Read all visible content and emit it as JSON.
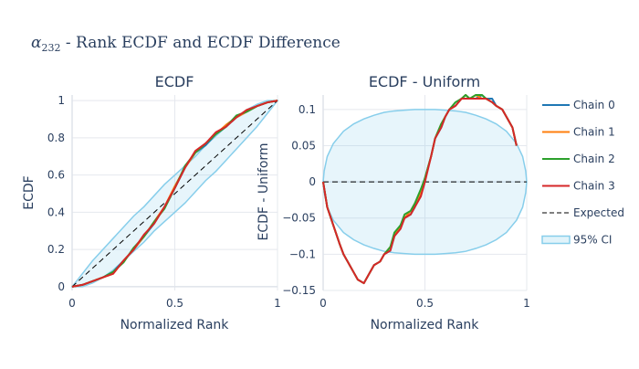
{
  "title_symbol": "α",
  "title_subscript": "232",
  "title_rest": " - Rank ECDF and ECDF Difference",
  "colors": {
    "Chain 0": "#1f77b4",
    "Chain 1": "#ff7f0e",
    "Chain 2": "#2ca02c",
    "Chain 3": "#d62728",
    "Expected": "#000000",
    "95% CI": "#87ceeb"
  },
  "legend": [
    "Chain 0",
    "Chain 1",
    "Chain 2",
    "Chain 3",
    "Expected",
    "95% CI"
  ],
  "chart_data": [
    {
      "type": "line",
      "title": "ECDF",
      "xlabel": "Normalized Rank",
      "ylabel": "ECDF",
      "xlim": [
        0,
        1
      ],
      "ylim": [
        -0.02,
        1.03
      ],
      "xticks": [
        0,
        0.5,
        1
      ],
      "xtick_labels": [
        "0",
        "0.5",
        "1"
      ],
      "yticks": [
        0,
        0.2,
        0.4,
        0.6,
        0.8,
        1
      ],
      "ytick_labels": [
        "0",
        "0.2",
        "0.4",
        "0.6",
        "0.8",
        "1"
      ],
      "grid": true,
      "x": [
        0,
        0.05,
        0.1,
        0.15,
        0.2,
        0.25,
        0.3,
        0.35,
        0.4,
        0.45,
        0.5,
        0.55,
        0.6,
        0.65,
        0.7,
        0.75,
        0.8,
        0.85,
        0.9,
        0.95,
        1
      ],
      "series": [
        {
          "name": "Chain 0",
          "values": [
            0,
            0.01,
            0.03,
            0.05,
            0.08,
            0.14,
            0.2,
            0.27,
            0.34,
            0.43,
            0.53,
            0.64,
            0.72,
            0.76,
            0.82,
            0.86,
            0.91,
            0.94,
            0.97,
            0.99,
            1
          ]
        },
        {
          "name": "Chain 1",
          "values": [
            0,
            0.01,
            0.03,
            0.05,
            0.07,
            0.14,
            0.2,
            0.27,
            0.35,
            0.43,
            0.54,
            0.64,
            0.72,
            0.77,
            0.82,
            0.87,
            0.91,
            0.94,
            0.97,
            0.99,
            1
          ]
        },
        {
          "name": "Chain 2",
          "values": [
            0,
            0.01,
            0.03,
            0.05,
            0.08,
            0.13,
            0.21,
            0.27,
            0.35,
            0.42,
            0.53,
            0.65,
            0.72,
            0.77,
            0.82,
            0.86,
            0.92,
            0.94,
            0.97,
            0.99,
            1
          ]
        },
        {
          "name": "Chain 3",
          "values": [
            0,
            0.01,
            0.03,
            0.05,
            0.07,
            0.14,
            0.2,
            0.28,
            0.34,
            0.43,
            0.53,
            0.64,
            0.73,
            0.77,
            0.83,
            0.86,
            0.91,
            0.95,
            0.97,
            0.99,
            1
          ]
        }
      ],
      "expected": {
        "x": [
          0,
          1
        ],
        "y": [
          0,
          1
        ]
      },
      "ci": {
        "x": [
          0,
          0.05,
          0.1,
          0.15,
          0.2,
          0.25,
          0.3,
          0.35,
          0.4,
          0.45,
          0.5,
          0.55,
          0.6,
          0.65,
          0.7,
          0.75,
          0.8,
          0.85,
          0.9,
          0.95,
          1
        ],
        "lower": [
          0,
          0.0,
          0.02,
          0.05,
          0.09,
          0.14,
          0.19,
          0.24,
          0.3,
          0.35,
          0.4,
          0.45,
          0.51,
          0.57,
          0.62,
          0.68,
          0.74,
          0.8,
          0.86,
          0.93,
          1
        ],
        "upper": [
          0,
          0.07,
          0.14,
          0.2,
          0.26,
          0.32,
          0.38,
          0.43,
          0.49,
          0.55,
          0.6,
          0.65,
          0.7,
          0.76,
          0.81,
          0.86,
          0.91,
          0.95,
          0.98,
          1.0,
          1
        ]
      }
    },
    {
      "type": "line",
      "title": "ECDF - Uniform",
      "xlabel": "Normalized Rank",
      "ylabel": "ECDF - Uniform",
      "xlim": [
        0,
        1
      ],
      "ylim": [
        -0.15,
        0.12
      ],
      "xticks": [
        0,
        0.5,
        1
      ],
      "xtick_labels": [
        "0",
        "0.5",
        "1"
      ],
      "yticks": [
        -0.15,
        -0.1,
        -0.05,
        0,
        0.05,
        0.1
      ],
      "ytick_labels": [
        "−0.15",
        "−0.1",
        "−0.05",
        "0",
        "0.05",
        "0.1"
      ],
      "grid": true,
      "x": [
        0,
        0.02,
        0.05,
        0.08,
        0.1,
        0.13,
        0.15,
        0.17,
        0.2,
        0.22,
        0.25,
        0.28,
        0.3,
        0.33,
        0.35,
        0.38,
        0.4,
        0.43,
        0.45,
        0.48,
        0.5,
        0.53,
        0.55,
        0.58,
        0.6,
        0.62,
        0.65,
        0.68,
        0.7,
        0.72,
        0.75,
        0.78,
        0.8,
        0.83,
        0.85,
        0.88,
        0.9,
        0.93,
        0.95
      ],
      "series": [
        {
          "name": "Chain 0",
          "values": [
            0,
            -0.035,
            -0.06,
            -0.085,
            -0.1,
            -0.115,
            -0.125,
            -0.135,
            -0.14,
            -0.13,
            -0.115,
            -0.11,
            -0.1,
            -0.095,
            -0.075,
            -0.06,
            -0.05,
            -0.045,
            -0.035,
            -0.015,
            0.005,
            0.035,
            0.06,
            0.075,
            0.09,
            0.1,
            0.105,
            0.115,
            0.12,
            0.115,
            0.115,
            0.12,
            0.115,
            0.115,
            0.105,
            0.1,
            0.09,
            0.075,
            0.05
          ]
        },
        {
          "name": "Chain 1",
          "values": [
            0,
            -0.035,
            -0.06,
            -0.085,
            -0.1,
            -0.115,
            -0.125,
            -0.135,
            -0.14,
            -0.13,
            -0.115,
            -0.11,
            -0.1,
            -0.09,
            -0.075,
            -0.06,
            -0.05,
            -0.04,
            -0.03,
            -0.015,
            0.005,
            0.035,
            0.06,
            0.08,
            0.09,
            0.1,
            0.105,
            0.115,
            0.12,
            0.115,
            0.12,
            0.115,
            0.115,
            0.11,
            0.105,
            0.1,
            0.09,
            0.075,
            0.05
          ]
        },
        {
          "name": "Chain 2",
          "values": [
            0,
            -0.035,
            -0.06,
            -0.085,
            -0.1,
            -0.115,
            -0.125,
            -0.135,
            -0.14,
            -0.13,
            -0.115,
            -0.11,
            -0.1,
            -0.09,
            -0.07,
            -0.06,
            -0.045,
            -0.04,
            -0.03,
            -0.01,
            0.005,
            0.035,
            0.06,
            0.08,
            0.09,
            0.1,
            0.11,
            0.115,
            0.12,
            0.115,
            0.12,
            0.12,
            0.115,
            0.11,
            0.105,
            0.1,
            0.09,
            0.075,
            0.05
          ]
        },
        {
          "name": "Chain 3",
          "values": [
            0,
            -0.035,
            -0.06,
            -0.085,
            -0.1,
            -0.115,
            -0.125,
            -0.135,
            -0.14,
            -0.13,
            -0.115,
            -0.11,
            -0.1,
            -0.095,
            -0.075,
            -0.065,
            -0.05,
            -0.045,
            -0.035,
            -0.02,
            0.0,
            0.035,
            0.06,
            0.075,
            0.09,
            0.1,
            0.105,
            0.115,
            0.115,
            0.115,
            0.115,
            0.115,
            0.115,
            0.11,
            0.105,
            0.1,
            0.09,
            0.075,
            0.05
          ]
        }
      ],
      "expected": {
        "x": [
          0,
          1
        ],
        "y": [
          0,
          0
        ]
      },
      "ci": {
        "x": [
          0,
          0.005,
          0.02,
          0.05,
          0.1,
          0.15,
          0.2,
          0.25,
          0.3,
          0.35,
          0.4,
          0.45,
          0.5,
          0.55,
          0.6,
          0.65,
          0.7,
          0.75,
          0.8,
          0.85,
          0.9,
          0.95,
          0.98,
          0.995,
          1
        ],
        "lower": [
          0,
          -0.015,
          -0.035,
          -0.053,
          -0.07,
          -0.08,
          -0.087,
          -0.092,
          -0.096,
          -0.098,
          -0.099,
          -0.1,
          -0.1,
          -0.1,
          -0.099,
          -0.098,
          -0.096,
          -0.092,
          -0.087,
          -0.08,
          -0.07,
          -0.053,
          -0.035,
          -0.015,
          0
        ],
        "upper": [
          0,
          0.015,
          0.035,
          0.053,
          0.07,
          0.08,
          0.087,
          0.092,
          0.096,
          0.098,
          0.099,
          0.1,
          0.1,
          0.1,
          0.099,
          0.098,
          0.096,
          0.092,
          0.087,
          0.08,
          0.07,
          0.053,
          0.035,
          0.015,
          0
        ]
      }
    }
  ]
}
